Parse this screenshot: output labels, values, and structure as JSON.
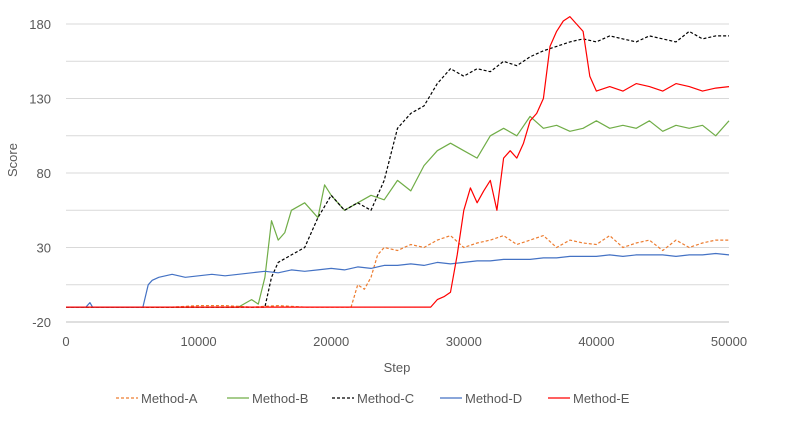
{
  "chart_data": {
    "type": "line",
    "xlabel": "Step",
    "ylabel": "Score",
    "xlim": [
      0,
      50000
    ],
    "ylim": [
      -20,
      190
    ],
    "xticks": [
      0,
      10000,
      20000,
      30000,
      40000,
      50000
    ],
    "yticks": [
      -20,
      30,
      80,
      130,
      180
    ],
    "grid": "horizontal",
    "legend_position": "bottom",
    "series": [
      {
        "name": "Method-A",
        "color": "#ED7D31",
        "dash": "dashed",
        "points": [
          [
            0,
            -10
          ],
          [
            2000,
            -10
          ],
          [
            4000,
            -10
          ],
          [
            6000,
            -10
          ],
          [
            8000,
            -10
          ],
          [
            10000,
            -9
          ],
          [
            12000,
            -9
          ],
          [
            14000,
            -10
          ],
          [
            16000,
            -9
          ],
          [
            18000,
            -10
          ],
          [
            20000,
            -10
          ],
          [
            21500,
            -10
          ],
          [
            22000,
            5
          ],
          [
            22500,
            2
          ],
          [
            23000,
            10
          ],
          [
            23500,
            25
          ],
          [
            24000,
            30
          ],
          [
            25000,
            28
          ],
          [
            26000,
            32
          ],
          [
            27000,
            30
          ],
          [
            28000,
            35
          ],
          [
            29000,
            38
          ],
          [
            30000,
            30
          ],
          [
            31000,
            33
          ],
          [
            32000,
            35
          ],
          [
            33000,
            38
          ],
          [
            34000,
            32
          ],
          [
            35000,
            35
          ],
          [
            36000,
            38
          ],
          [
            37000,
            30
          ],
          [
            38000,
            35
          ],
          [
            39000,
            33
          ],
          [
            40000,
            32
          ],
          [
            41000,
            38
          ],
          [
            42000,
            30
          ],
          [
            43000,
            33
          ],
          [
            44000,
            35
          ],
          [
            45000,
            28
          ],
          [
            46000,
            35
          ],
          [
            47000,
            30
          ],
          [
            48000,
            33
          ],
          [
            49000,
            35
          ],
          [
            50000,
            35
          ]
        ]
      },
      {
        "name": "Method-B",
        "color": "#70AD47",
        "dash": "solid",
        "points": [
          [
            0,
            -10
          ],
          [
            5000,
            -10
          ],
          [
            10000,
            -10
          ],
          [
            13000,
            -10
          ],
          [
            14000,
            -5
          ],
          [
            14500,
            -8
          ],
          [
            15000,
            10
          ],
          [
            15500,
            48
          ],
          [
            16000,
            35
          ],
          [
            16500,
            40
          ],
          [
            17000,
            55
          ],
          [
            18000,
            60
          ],
          [
            19000,
            50
          ],
          [
            19500,
            72
          ],
          [
            20000,
            65
          ],
          [
            21000,
            55
          ],
          [
            22000,
            60
          ],
          [
            23000,
            65
          ],
          [
            24000,
            62
          ],
          [
            25000,
            75
          ],
          [
            26000,
            68
          ],
          [
            27000,
            85
          ],
          [
            28000,
            95
          ],
          [
            29000,
            100
          ],
          [
            30000,
            95
          ],
          [
            31000,
            90
          ],
          [
            32000,
            105
          ],
          [
            33000,
            110
          ],
          [
            34000,
            105
          ],
          [
            35000,
            118
          ],
          [
            36000,
            110
          ],
          [
            37000,
            112
          ],
          [
            38000,
            108
          ],
          [
            39000,
            110
          ],
          [
            40000,
            115
          ],
          [
            41000,
            110
          ],
          [
            42000,
            112
          ],
          [
            43000,
            110
          ],
          [
            44000,
            115
          ],
          [
            45000,
            108
          ],
          [
            46000,
            112
          ],
          [
            47000,
            110
          ],
          [
            48000,
            112
          ],
          [
            49000,
            105
          ],
          [
            50000,
            115
          ]
        ]
      },
      {
        "name": "Method-C",
        "color": "#000000",
        "dash": "dashed",
        "points": [
          [
            0,
            -10
          ],
          [
            5000,
            -10
          ],
          [
            10000,
            -10
          ],
          [
            15000,
            -10
          ],
          [
            15500,
            10
          ],
          [
            16000,
            20
          ],
          [
            17000,
            25
          ],
          [
            18000,
            30
          ],
          [
            19000,
            50
          ],
          [
            20000,
            65
          ],
          [
            21000,
            55
          ],
          [
            22000,
            60
          ],
          [
            23000,
            55
          ],
          [
            24000,
            75
          ],
          [
            25000,
            110
          ],
          [
            26000,
            120
          ],
          [
            27000,
            125
          ],
          [
            28000,
            140
          ],
          [
            29000,
            150
          ],
          [
            30000,
            145
          ],
          [
            31000,
            150
          ],
          [
            32000,
            148
          ],
          [
            33000,
            155
          ],
          [
            34000,
            152
          ],
          [
            35000,
            158
          ],
          [
            36000,
            162
          ],
          [
            37000,
            165
          ],
          [
            38000,
            168
          ],
          [
            39000,
            170
          ],
          [
            40000,
            168
          ],
          [
            41000,
            172
          ],
          [
            42000,
            170
          ],
          [
            43000,
            168
          ],
          [
            44000,
            172
          ],
          [
            45000,
            170
          ],
          [
            46000,
            168
          ],
          [
            47000,
            175
          ],
          [
            48000,
            170
          ],
          [
            49000,
            172
          ],
          [
            50000,
            172
          ]
        ]
      },
      {
        "name": "Method-D",
        "color": "#4472C4",
        "dash": "solid",
        "points": [
          [
            0,
            -10
          ],
          [
            1500,
            -10
          ],
          [
            1800,
            -7
          ],
          [
            2000,
            -10
          ],
          [
            4000,
            -10
          ],
          [
            5800,
            -10
          ],
          [
            6200,
            5
          ],
          [
            6500,
            8
          ],
          [
            7000,
            10
          ],
          [
            8000,
            12
          ],
          [
            9000,
            10
          ],
          [
            10000,
            11
          ],
          [
            11000,
            12
          ],
          [
            12000,
            11
          ],
          [
            13000,
            12
          ],
          [
            14000,
            13
          ],
          [
            15000,
            14
          ],
          [
            16000,
            13
          ],
          [
            17000,
            15
          ],
          [
            18000,
            14
          ],
          [
            19000,
            15
          ],
          [
            20000,
            16
          ],
          [
            21000,
            15
          ],
          [
            22000,
            17
          ],
          [
            23000,
            16
          ],
          [
            24000,
            18
          ],
          [
            25000,
            18
          ],
          [
            26000,
            19
          ],
          [
            27000,
            18
          ],
          [
            28000,
            20
          ],
          [
            29000,
            19
          ],
          [
            30000,
            20
          ],
          [
            31000,
            21
          ],
          [
            32000,
            21
          ],
          [
            33000,
            22
          ],
          [
            34000,
            22
          ],
          [
            35000,
            22
          ],
          [
            36000,
            23
          ],
          [
            37000,
            23
          ],
          [
            38000,
            24
          ],
          [
            39000,
            24
          ],
          [
            40000,
            24
          ],
          [
            41000,
            25
          ],
          [
            42000,
            24
          ],
          [
            43000,
            25
          ],
          [
            44000,
            25
          ],
          [
            45000,
            25
          ],
          [
            46000,
            24
          ],
          [
            47000,
            25
          ],
          [
            48000,
            25
          ],
          [
            49000,
            26
          ],
          [
            50000,
            25
          ]
        ]
      },
      {
        "name": "Method-E",
        "color": "#FF0000",
        "dash": "solid",
        "points": [
          [
            0,
            -10
          ],
          [
            5000,
            -10
          ],
          [
            10000,
            -10
          ],
          [
            15000,
            -10
          ],
          [
            20000,
            -10
          ],
          [
            25000,
            -10
          ],
          [
            27500,
            -10
          ],
          [
            28000,
            -5
          ],
          [
            28500,
            -3
          ],
          [
            29000,
            0
          ],
          [
            29500,
            25
          ],
          [
            30000,
            55
          ],
          [
            30500,
            70
          ],
          [
            31000,
            60
          ],
          [
            31500,
            68
          ],
          [
            32000,
            75
          ],
          [
            32500,
            55
          ],
          [
            33000,
            90
          ],
          [
            33500,
            95
          ],
          [
            34000,
            90
          ],
          [
            34500,
            100
          ],
          [
            35000,
            115
          ],
          [
            35500,
            120
          ],
          [
            36000,
            130
          ],
          [
            36500,
            165
          ],
          [
            37000,
            175
          ],
          [
            37500,
            182
          ],
          [
            38000,
            185
          ],
          [
            38500,
            180
          ],
          [
            39000,
            175
          ],
          [
            39500,
            145
          ],
          [
            40000,
            135
          ],
          [
            41000,
            138
          ],
          [
            42000,
            135
          ],
          [
            43000,
            140
          ],
          [
            44000,
            138
          ],
          [
            45000,
            135
          ],
          [
            46000,
            140
          ],
          [
            47000,
            138
          ],
          [
            48000,
            135
          ],
          [
            49000,
            137
          ],
          [
            50000,
            138
          ]
        ]
      }
    ]
  }
}
